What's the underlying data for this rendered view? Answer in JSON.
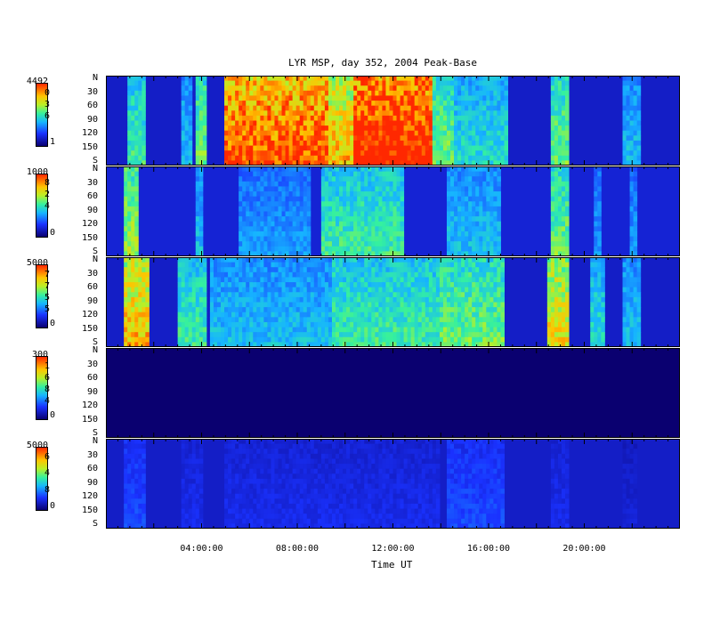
{
  "chart_data": {
    "type": "heatmap",
    "title": "LYR MSP, day 352, 2004 Peak-Base",
    "xlabel": "Time UT",
    "x_ticks": [
      "04:00:00",
      "08:00:00",
      "12:00:00",
      "16:00:00",
      "20:00:00"
    ],
    "x_tick_hours": [
      4,
      8,
      12,
      16,
      20
    ],
    "xlim_hours": [
      0,
      24
    ],
    "y_ticks": [
      "N",
      "30",
      "60",
      "90",
      "120",
      "150",
      "S"
    ],
    "ylim": [
      0,
      180
    ],
    "panels": [
      {
        "colorbar_max": "4492",
        "colorbar_mid": [
          "0",
          "3",
          "6"
        ],
        "colorbar_min": "1",
        "activity": [
          [
            0.9,
            1.7,
            0.45
          ],
          [
            3.1,
            3.6,
            0.35
          ],
          [
            3.7,
            4.2,
            0.5
          ],
          [
            5.0,
            9.3,
            0.85
          ],
          [
            9.3,
            10.3,
            0.7
          ],
          [
            10.3,
            11.2,
            0.95
          ],
          [
            11.2,
            13.7,
            0.95
          ],
          [
            13.7,
            14.5,
            0.5
          ],
          [
            14.5,
            16.8,
            0.4
          ],
          [
            18.6,
            19.3,
            0.5
          ],
          [
            21.6,
            22.3,
            0.35
          ]
        ]
      },
      {
        "colorbar_max": "1000",
        "colorbar_mid": [
          "8",
          "2",
          "4"
        ],
        "colorbar_min": "0",
        "activity": [
          [
            0.8,
            1.4,
            0.55
          ],
          [
            3.7,
            4.1,
            0.35
          ],
          [
            5.5,
            8.5,
            0.3
          ],
          [
            9.0,
            12.5,
            0.45
          ],
          [
            14.2,
            16.5,
            0.35
          ],
          [
            18.6,
            19.4,
            0.5
          ],
          [
            20.4,
            20.7,
            0.3
          ],
          [
            21.9,
            22.2,
            0.3
          ]
        ]
      },
      {
        "colorbar_max": "5000",
        "colorbar_mid": [
          "7",
          "7",
          "5",
          "5"
        ],
        "colorbar_min": "0",
        "activity": [
          [
            0.7,
            1.8,
            0.7
          ],
          [
            3.0,
            4.2,
            0.45
          ],
          [
            4.3,
            9.5,
            0.35
          ],
          [
            9.5,
            14.0,
            0.45
          ],
          [
            14.0,
            16.7,
            0.5
          ],
          [
            18.5,
            19.4,
            0.65
          ],
          [
            20.3,
            20.8,
            0.4
          ],
          [
            21.6,
            22.3,
            0.35
          ]
        ]
      },
      {
        "colorbar_max": "300",
        "colorbar_mid": [
          "1",
          "6",
          "8",
          "4"
        ],
        "colorbar_min": "0",
        "activity": []
      },
      {
        "colorbar_max": "5000",
        "colorbar_mid": [
          "6",
          "4",
          "8"
        ],
        "colorbar_min": "0",
        "activity": [
          [
            0.8,
            1.7,
            0.2
          ],
          [
            3.2,
            4.1,
            0.15
          ],
          [
            5.0,
            14.0,
            0.15
          ],
          [
            14.3,
            16.7,
            0.2
          ],
          [
            18.6,
            19.3,
            0.15
          ],
          [
            21.6,
            22.2,
            0.12
          ]
        ]
      }
    ]
  }
}
